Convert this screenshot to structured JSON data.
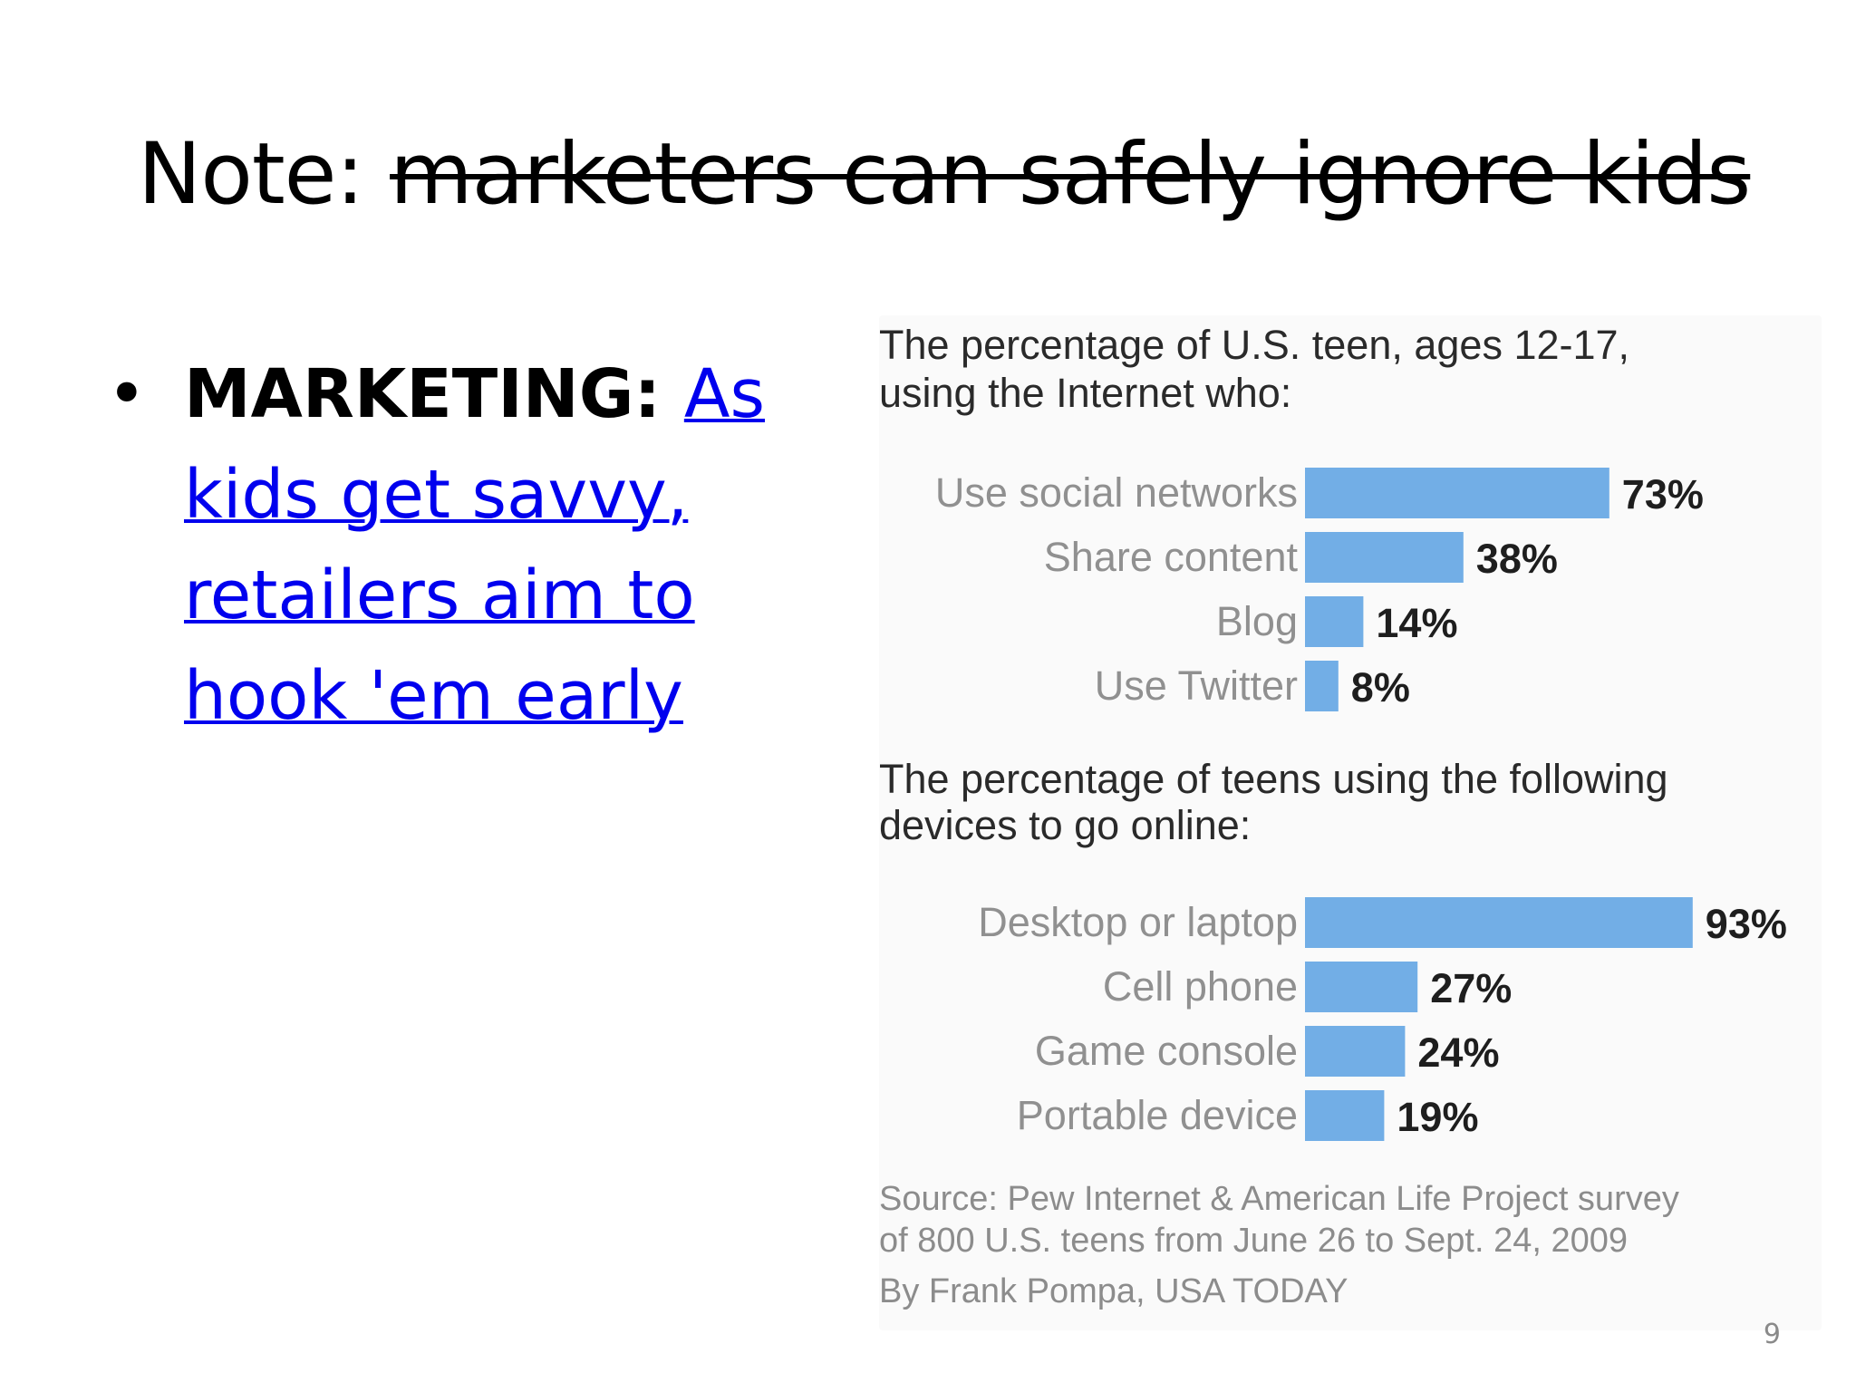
{
  "slide": {
    "title_prefix": "Note: ",
    "title_struck": "marketers can safely ignore kids",
    "bullet_lead": "MARKETING: ",
    "bullet_link": "As kids get savvy, retailers aim to hook 'em early",
    "page_number": "9"
  },
  "colors": {
    "bar": "#72aee6",
    "title_text": "#2a2a2a",
    "category_text": "#909090",
    "value_text": "#1e1e1e",
    "source_text": "#8c8c8c",
    "link": "#0000ee"
  },
  "chart_data": [
    {
      "type": "bar",
      "orientation": "horizontal",
      "title": "The percentage of U.S. teen, ages 12-17, using the Internet who:",
      "categories": [
        "Use social networks",
        "Share content",
        "Blog",
        "Use Twitter"
      ],
      "values": [
        73,
        38,
        14,
        8
      ],
      "value_labels": [
        "73%",
        "38%",
        "14%",
        "8%"
      ],
      "unit": "%",
      "xlim": [
        0,
        100
      ]
    },
    {
      "type": "bar",
      "orientation": "horizontal",
      "title": "The percentage of teens using the following devices to go online:",
      "categories": [
        "Desktop or laptop",
        "Cell phone",
        "Game console",
        "Portable device"
      ],
      "values": [
        93,
        27,
        24,
        19
      ],
      "value_labels": [
        "93%",
        "27%",
        "24%",
        "19%"
      ],
      "unit": "%",
      "xlim": [
        0,
        100
      ]
    }
  ],
  "chart_footer": {
    "source_line1": "Source: Pew Internet & American Life Project survey",
    "source_line2": "of 800 U.S. teens from June 26 to Sept. 24, 2009",
    "byline": "By Frank Pompa, USA TODAY"
  }
}
